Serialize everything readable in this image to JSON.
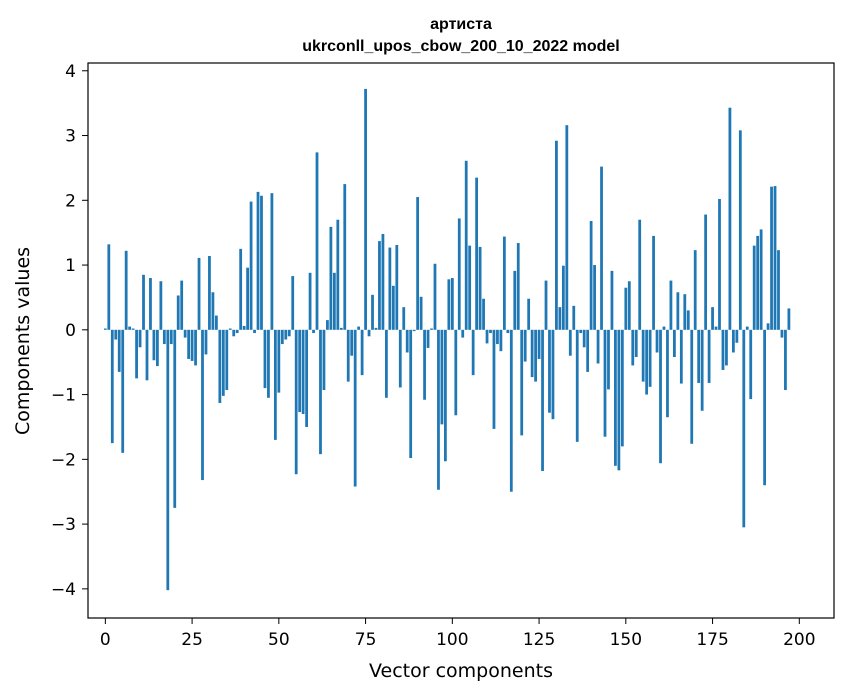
{
  "chart_data": {
    "type": "bar",
    "title_line1": "артиста",
    "title_line2": "ukrconll_upos_cbow_200_10_2022 model",
    "xlabel": "Vector components",
    "ylabel": "Components values",
    "xlim": [
      -5,
      210
    ],
    "ylim": [
      -4.45,
      4.12
    ],
    "x_ticks": [
      0,
      25,
      50,
      75,
      100,
      125,
      150,
      175,
      200
    ],
    "x_tick_labels": [
      "0",
      "25",
      "50",
      "75",
      "100",
      "125",
      "150",
      "175",
      "200"
    ],
    "y_ticks": [
      -4,
      -3,
      -2,
      -1,
      0,
      1,
      2,
      3,
      4
    ],
    "y_tick_labels": [
      "−4",
      "−3",
      "−2",
      "−1",
      "0",
      "1",
      "2",
      "3",
      "4"
    ],
    "bar_color": "#1f77b4",
    "values": [
      0.02,
      1.32,
      -1.75,
      -0.15,
      -0.65,
      -1.9,
      1.22,
      0.05,
      0.02,
      -0.75,
      -0.27,
      0.85,
      -0.78,
      0.8,
      -0.47,
      -0.56,
      0.75,
      -0.22,
      -4.02,
      -0.22,
      -2.75,
      0.53,
      0.76,
      -0.12,
      -0.45,
      -0.48,
      -0.55,
      1.11,
      -2.32,
      -0.38,
      1.14,
      0.58,
      0.22,
      -1.13,
      -1.02,
      -0.93,
      0.02,
      -0.1,
      -0.05,
      1.25,
      0.06,
      0.96,
      1.98,
      -0.05,
      2.13,
      2.07,
      -0.9,
      -1.05,
      2.11,
      -1.7,
      -0.97,
      -0.22,
      -0.15,
      -0.1,
      0.83,
      -2.23,
      -1.27,
      -1.3,
      -1.5,
      0.88,
      -0.05,
      2.74,
      -1.92,
      -0.93,
      0.15,
      1.59,
      0.88,
      1.7,
      0.03,
      2.25,
      -0.8,
      -0.4,
      -2.42,
      0.05,
      -0.7,
      3.72,
      -0.1,
      0.54,
      0.03,
      1.37,
      1.48,
      -1.05,
      1.27,
      0.68,
      1.31,
      -0.89,
      0.35,
      -0.35,
      -1.98,
      -0.02,
      2.05,
      0.51,
      -1.08,
      -0.28,
      0.02,
      1.02,
      -2.47,
      -1.46,
      -2.03,
      0.78,
      0.8,
      -1.32,
      1.72,
      -0.12,
      2.61,
      1.3,
      -0.7,
      2.35,
      1.28,
      0.48,
      -0.21,
      -0.05,
      -1.53,
      -0.22,
      -0.33,
      1.44,
      -0.05,
      -2.5,
      0.91,
      1.34,
      -1.63,
      -0.49,
      0.48,
      -0.73,
      -0.8,
      -0.45,
      -2.18,
      0.76,
      -1.28,
      -1.38,
      2.92,
      0.35,
      0.99,
      3.16,
      -0.4,
      0.37,
      -1.73,
      -0.05,
      -0.27,
      -0.65,
      1.68,
      1.0,
      -0.52,
      2.52,
      -1.65,
      -0.92,
      0.91,
      -2.1,
      -2.17,
      -1.8,
      0.65,
      0.75,
      -0.55,
      -0.42,
      1.7,
      -0.8,
      -1.0,
      -0.88,
      1.45,
      -0.35,
      -2.06,
      0.05,
      -1.35,
      0.76,
      -0.42,
      0.58,
      -0.83,
      0.55,
      0.3,
      -1.76,
      1.23,
      -0.82,
      -1.25,
      1.78,
      -0.82,
      0.35,
      0.05,
      2.02,
      -0.62,
      -0.55,
      3.43,
      -0.35,
      -0.2,
      3.08,
      -3.05,
      0.05,
      -1.07,
      1.3,
      1.45,
      1.55,
      -2.4,
      0.1,
      2.21,
      2.22,
      1.23,
      -0.12,
      -0.93,
      0.33
    ]
  }
}
